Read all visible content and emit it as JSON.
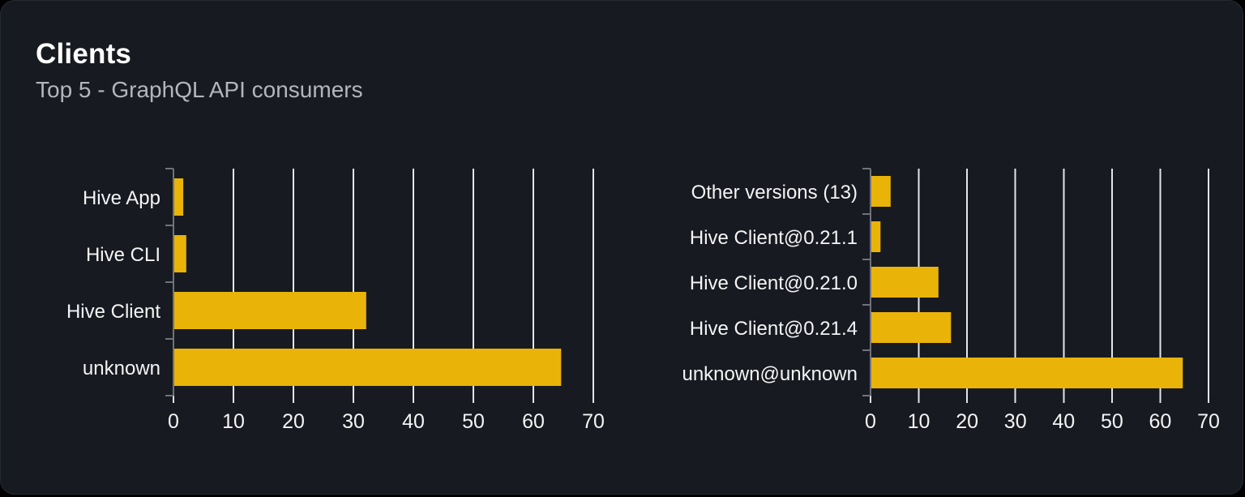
{
  "card": {
    "title": "Clients",
    "subtitle": "Top 5 - GraphQL API consumers"
  },
  "colors": {
    "page_background": "#000000",
    "card_background": "#171a20",
    "card_border": "#262a31",
    "bar": "#eab308",
    "gridline": "#e2e6ec",
    "axis": "#70737a",
    "x_tick": "#dfe2e8",
    "category_label": "#f4f4f5",
    "tick_label": "#f4f4f5",
    "subtitle_text": "#b3b6bc",
    "title_text": "#ffffff"
  },
  "chart_data": [
    {
      "type": "bar",
      "orientation": "horizontal",
      "title": "",
      "xlabel": "",
      "ylabel": "",
      "categories": [
        "Hive App",
        "Hive CLI",
        "Hive Client",
        "unknown"
      ],
      "values": [
        1.5,
        2,
        32,
        64.5
      ],
      "x_ticks": [
        0,
        10,
        20,
        30,
        40,
        50,
        60,
        70
      ],
      "xlim": [
        0,
        70
      ],
      "grid": true,
      "legend": false,
      "bar_color": "#eab308"
    },
    {
      "type": "bar",
      "orientation": "horizontal",
      "title": "",
      "xlabel": "",
      "ylabel": "",
      "categories": [
        "Other versions (13)",
        "Hive Client@0.21.1",
        "Hive Client@0.21.0",
        "Hive Client@0.21.4",
        "unknown@unknown"
      ],
      "values": [
        4,
        1.9,
        13.9,
        16.5,
        64.5
      ],
      "x_ticks": [
        0,
        10,
        20,
        30,
        40,
        50,
        60,
        70
      ],
      "xlim": [
        0,
        70
      ],
      "grid": true,
      "legend": false,
      "bar_color": "#eab308"
    }
  ]
}
